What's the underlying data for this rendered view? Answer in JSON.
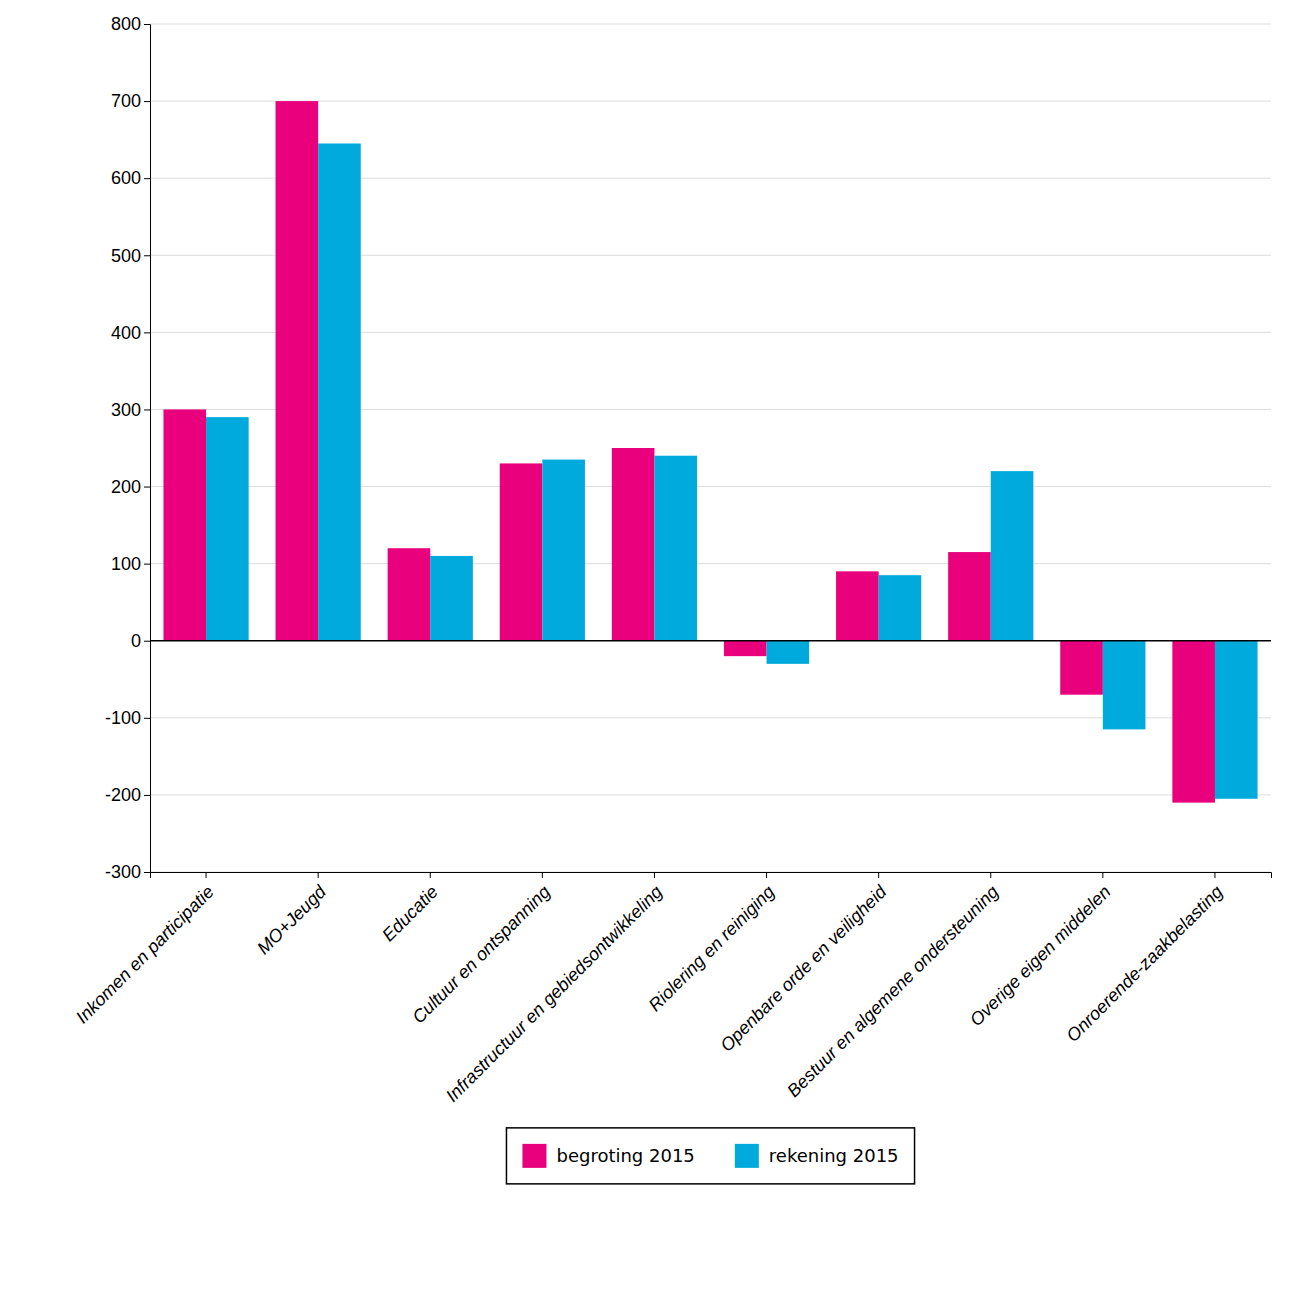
{
  "chart_data": {
    "type": "bar",
    "categories": [
      "Inkomen en participatie",
      "MO+Jeugd",
      "Educatie",
      "Cultuur en ontspanning",
      "Infrastructuur en gebiedsontwikkeling",
      "Riolering en reiniging",
      "Openbare orde en veiligheid",
      "Bestuur en algemene ondersteuning",
      "Overige eigen middelen",
      "Onroerende-zaakbelasting"
    ],
    "series": [
      {
        "name": "begroting 2015",
        "color": "#E8007D",
        "values": [
          300,
          700,
          120,
          230,
          250,
          -20,
          90,
          115,
          -70,
          -210
        ]
      },
      {
        "name": "rekening 2015",
        "color": "#00AADD",
        "values": [
          290,
          645,
          110,
          235,
          240,
          -30,
          85,
          220,
          -115,
          -205
        ]
      }
    ],
    "ylim": [
      -300,
      800
    ],
    "yticks": [
      -300,
      -200,
      -100,
      0,
      100,
      200,
      300,
      400,
      500,
      600,
      700,
      800
    ],
    "grid": true,
    "legend": "bottom"
  }
}
